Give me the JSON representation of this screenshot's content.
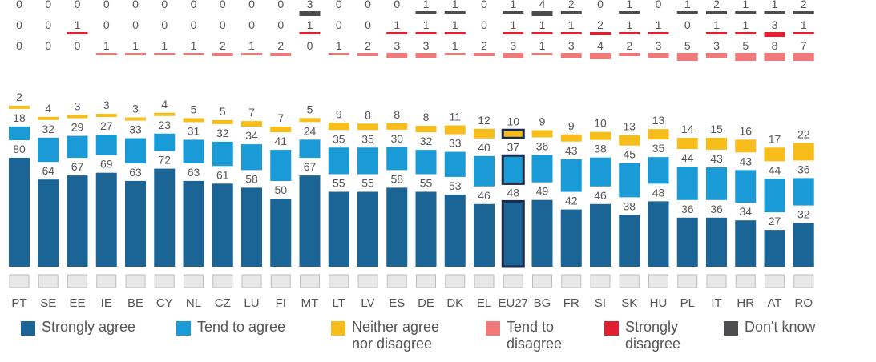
{
  "chart_data": {
    "type": "bar",
    "stacked": true,
    "horizontal": false,
    "categories": [
      "PT",
      "SE",
      "EE",
      "IE",
      "BE",
      "CY",
      "NL",
      "CZ",
      "LU",
      "FI",
      "MT",
      "LT",
      "LV",
      "ES",
      "DE",
      "DK",
      "EL",
      "EU27",
      "BG",
      "FR",
      "SI",
      "SK",
      "HU",
      "PL",
      "IT",
      "HR",
      "AT",
      "RO"
    ],
    "highlight_category": "EU27",
    "series": [
      {
        "name": "Strongly agree",
        "color": "#1a6496",
        "values": [
          80,
          64,
          67,
          69,
          63,
          72,
          63,
          61,
          58,
          50,
          67,
          55,
          55,
          58,
          55,
          53,
          46,
          48,
          49,
          42,
          46,
          38,
          48,
          36,
          36,
          34,
          27,
          32
        ]
      },
      {
        "name": "Tend to agree",
        "color": "#1a9bd7",
        "values": [
          18,
          32,
          29,
          27,
          33,
          23,
          31,
          32,
          34,
          41,
          24,
          35,
          35,
          30,
          32,
          33,
          40,
          37,
          36,
          43,
          38,
          45,
          35,
          44,
          43,
          43,
          44,
          36
        ]
      },
      {
        "name": "Neither agree nor disagree",
        "color": "#f7bd1a",
        "values": [
          2,
          4,
          3,
          3,
          3,
          4,
          5,
          5,
          7,
          7,
          5,
          9,
          8,
          8,
          8,
          11,
          12,
          10,
          9,
          9,
          10,
          13,
          13,
          14,
          15,
          16,
          17,
          22
        ]
      },
      {
        "name": "Tend to disagree",
        "color": "#f2797a",
        "values": [
          0,
          0,
          0,
          1,
          1,
          1,
          1,
          2,
          1,
          2,
          0,
          1,
          2,
          3,
          3,
          1,
          2,
          3,
          1,
          3,
          4,
          2,
          3,
          5,
          3,
          5,
          8,
          7
        ]
      },
      {
        "name": "Strongly disagree",
        "color": "#e02030",
        "values": [
          0,
          0,
          1,
          0,
          0,
          0,
          0,
          0,
          0,
          0,
          1,
          0,
          0,
          1,
          1,
          1,
          0,
          1,
          1,
          1,
          2,
          1,
          1,
          0,
          1,
          1,
          3,
          1
        ]
      },
      {
        "name": "Don't know",
        "color": "#4d4d4f",
        "values": [
          0,
          0,
          0,
          0,
          0,
          0,
          0,
          0,
          0,
          0,
          3,
          0,
          0,
          0,
          1,
          1,
          0,
          1,
          4,
          2,
          0,
          1,
          0,
          1,
          2,
          1,
          1,
          2
        ]
      }
    ],
    "legend_position": "bottom",
    "grid": false
  },
  "legend": [
    {
      "label_lines": [
        "Strongly agree"
      ],
      "color": "#1a6496"
    },
    {
      "label_lines": [
        "Tend to agree"
      ],
      "color": "#1a9bd7"
    },
    {
      "label_lines": [
        "Neither agree",
        "nor disagree"
      ],
      "color": "#f7bd1a"
    },
    {
      "label_lines": [
        "Tend to",
        "disagree"
      ],
      "color": "#f2797a"
    },
    {
      "label_lines": [
        "Strongly",
        "disagree"
      ],
      "color": "#e02030"
    },
    {
      "label_lines": [
        "Don't know"
      ],
      "color": "#4d4d4f"
    }
  ]
}
